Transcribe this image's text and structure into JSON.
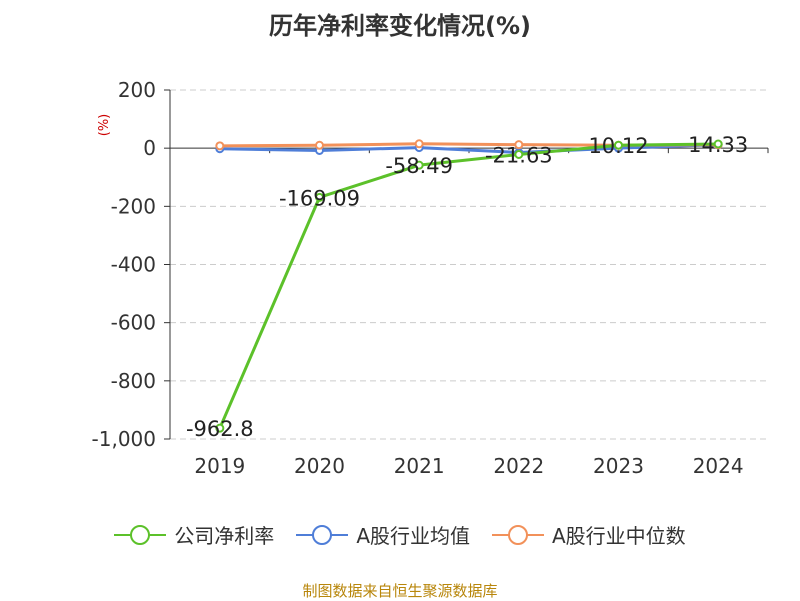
{
  "title": "历年净利率变化情况(%)",
  "source": "制图数据来自恒生聚源数据库",
  "chart_data": {
    "type": "line",
    "title": "历年净利率变化情况(%)",
    "ylabel": "(%)",
    "x": [
      "2019",
      "2020",
      "2021",
      "2022",
      "2023",
      "2024"
    ],
    "ylim": [
      -1000,
      200
    ],
    "yticks": [
      200,
      0,
      -200,
      -400,
      -600,
      -800,
      -1000
    ],
    "ytick_labels": [
      "200",
      "0",
      "-200",
      "-400",
      "-600",
      "-800",
      "-1,000"
    ],
    "grid": true,
    "legend_position": "bottom",
    "series": [
      {
        "name": "公司净利率",
        "color": "#5cc12a",
        "values": [
          -962.8,
          -169.09,
          -58.49,
          -21.63,
          10.12,
          14.33
        ],
        "labels": [
          "-962.8",
          "-169.09",
          "-58.49",
          "-21.63",
          "10.12",
          "14.33"
        ]
      },
      {
        "name": "A股行业均值",
        "color": "#4f7ed8",
        "values": [
          -2,
          -8,
          2,
          -15,
          0,
          12
        ]
      },
      {
        "name": "A股行业中位数",
        "color": "#f2915a",
        "values": [
          8,
          10,
          15,
          12,
          10,
          12
        ]
      }
    ]
  }
}
